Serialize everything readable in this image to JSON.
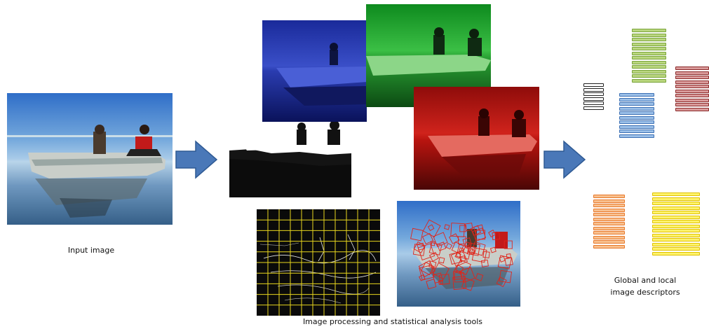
{
  "captions": {
    "input": "Input image",
    "tools": "Image processing and statistical analysis tools",
    "descriptors_line1": "Global and local",
    "descriptors_line2": "image descriptors"
  },
  "colors": {
    "arrow_fill": "#4a78b8",
    "arrow_stroke": "#2f5a94",
    "channel_blue": "#1d2fa0",
    "channel_green": "#1f9a2a",
    "channel_red": "#b5120f",
    "grid_yellow": "#e8d61e",
    "keypoint_red": "#e0241a"
  },
  "descriptor_stacks": [
    {
      "name": "descriptor-stack-black",
      "color": "#222222",
      "fill": "#ffffff",
      "bars": 6
    },
    {
      "name": "descriptor-stack-green",
      "color": "#7aa43a",
      "fill": "#b9d67e",
      "bars": 12
    },
    {
      "name": "descriptor-stack-darkred",
      "color": "#8c2a2a",
      "fill": "#d99a9a",
      "bars": 10
    },
    {
      "name": "descriptor-stack-blue",
      "color": "#3b6fb4",
      "fill": "#9cc0e8",
      "bars": 10
    },
    {
      "name": "descriptor-stack-orange",
      "color": "#e8782a",
      "fill": "#f8c08e",
      "bars": 12
    },
    {
      "name": "descriptor-stack-yellow",
      "color": "#e0c000",
      "fill": "#fff36a",
      "bars": 14
    }
  ]
}
